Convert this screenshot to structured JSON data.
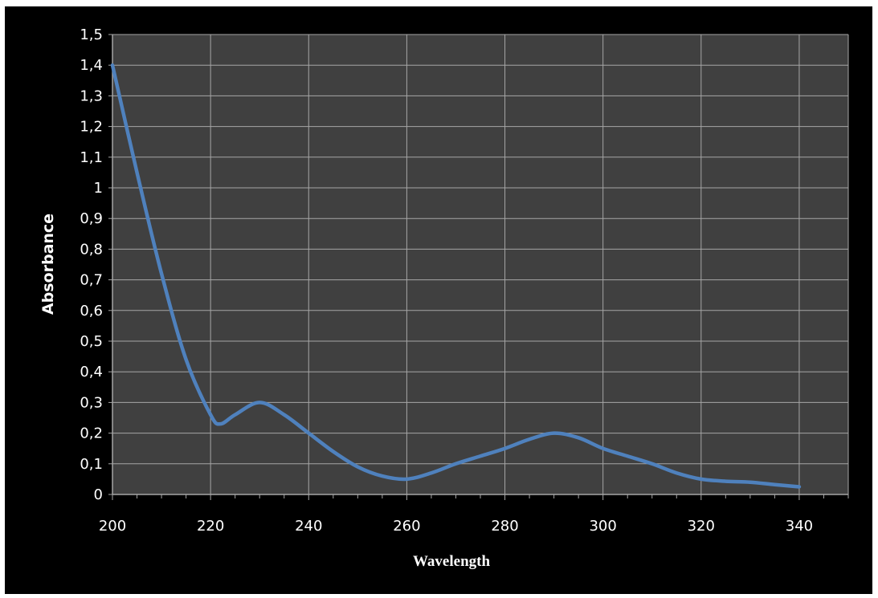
{
  "chart_data": {
    "type": "line",
    "title": "",
    "xlabel": "Wavelength",
    "ylabel": "Absorbance",
    "xlim": [
      200,
      350
    ],
    "ylim": [
      0,
      1.5
    ],
    "x_ticks": [
      200,
      220,
      240,
      260,
      280,
      300,
      320,
      340
    ],
    "x_tick_labels": [
      "200",
      "220",
      "240",
      "260",
      "280",
      "300",
      "320",
      "340"
    ],
    "y_ticks": [
      0,
      0.1,
      0.2,
      0.3,
      0.4,
      0.5,
      0.6,
      0.7,
      0.8,
      0.9,
      1.0,
      1.1,
      1.2,
      1.3,
      1.4,
      1.5
    ],
    "y_tick_labels": [
      "0",
      "0,1",
      "0,2",
      "0,3",
      "0,4",
      "0,5",
      "0,6",
      "0,7",
      "0,8",
      "0,9",
      "1",
      "1,1",
      "1,2",
      "1,3",
      "1,4",
      "1,5"
    ],
    "x_minor_step": 5,
    "grid": true,
    "legend": "none",
    "smooth": true,
    "series": [
      {
        "x": [
          200,
          205,
          210,
          215,
          220,
          222,
          225,
          230,
          235,
          240,
          245,
          250,
          255,
          260,
          265,
          270,
          275,
          280,
          285,
          290,
          295,
          300,
          305,
          310,
          315,
          320,
          325,
          330,
          335,
          340
        ],
        "values": [
          1.4,
          1.05,
          0.72,
          0.44,
          0.26,
          0.23,
          0.26,
          0.3,
          0.26,
          0.2,
          0.14,
          0.09,
          0.06,
          0.05,
          0.07,
          0.1,
          0.125,
          0.15,
          0.18,
          0.2,
          0.185,
          0.15,
          0.125,
          0.1,
          0.07,
          0.05,
          0.043,
          0.04,
          0.032,
          0.025
        ]
      }
    ],
    "colors": {
      "background": "#000000",
      "plot_area": "#404040",
      "grid": "#a6a6a6",
      "line": "#4f81bd",
      "text": "#ffffff"
    }
  }
}
